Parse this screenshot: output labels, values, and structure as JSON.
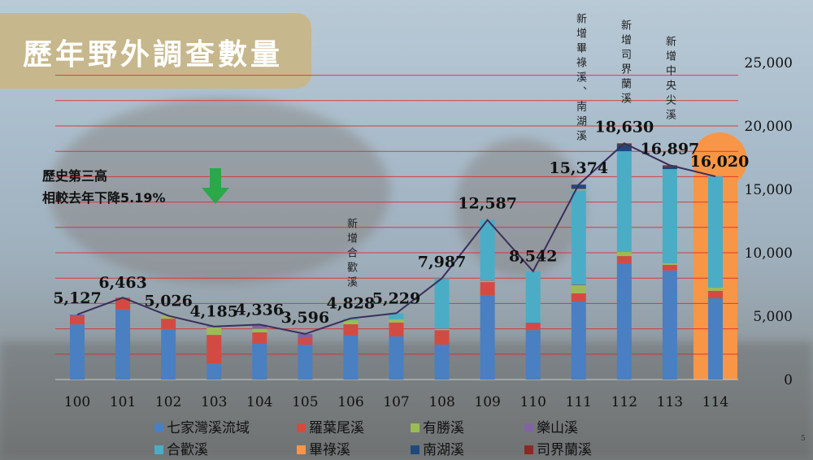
{
  "title": "歷年野外調查數量",
  "annotation_main": {
    "line1": "歷史第三高",
    "line2": "相較去年下降5.19%",
    "arrow_icon": "arrow-down-icon",
    "arrow_color": "#2aa84a"
  },
  "vertical_notes": [
    {
      "year": "106",
      "text": "新增合歡溪"
    },
    {
      "year": "111",
      "text": "新增畢祿溪、南湖溪"
    },
    {
      "year": "112",
      "text": "新增司界蘭溪"
    },
    {
      "year": "113",
      "text": "新增中央尖溪"
    }
  ],
  "page_number": "5",
  "chart_data": {
    "type": "bar",
    "stacked": true,
    "title": "歷年野外調查數量",
    "categories": [
      "100",
      "101",
      "102",
      "103",
      "104",
      "105",
      "106",
      "107",
      "108",
      "109",
      "110",
      "111",
      "112",
      "113",
      "114"
    ],
    "totals": [
      5127,
      6463,
      5026,
      4185,
      4336,
      3596,
      4828,
      5229,
      7987,
      12587,
      8542,
      15374,
      18630,
      16897,
      16020
    ],
    "total_labels": [
      "5,127",
      "6,463",
      "5,026",
      "4,185",
      "4,336",
      "3,596",
      "4,828",
      "5,229",
      "7,987",
      "12,587",
      "8,542",
      "15,374",
      "18,630",
      "16,897",
      "16,020"
    ],
    "series": [
      {
        "name": "七家灣溪流域",
        "color": "#4a7fc1",
        "values": [
          4350,
          5500,
          3970,
          1280,
          2820,
          2750,
          3460,
          3400,
          2760,
          6670,
          3900,
          6150,
          9170,
          8600,
          6410
        ]
      },
      {
        "name": "羅葉尾溪",
        "color": "#d24b43",
        "values": [
          650,
          963,
          830,
          2240,
          900,
          520,
          900,
          1090,
          1140,
          1020,
          520,
          650,
          570,
          440,
          580
        ]
      },
      {
        "name": "有勝溪",
        "color": "#9bbb59",
        "values": [
          0,
          0,
          226,
          600,
          280,
          0,
          320,
          250,
          100,
          100,
          0,
          640,
          320,
          130,
          250
        ]
      },
      {
        "name": "樂山溪",
        "color": "#8064a2",
        "values": [
          127,
          0,
          0,
          65,
          336,
          326,
          0,
          0,
          50,
          50,
          80,
          60,
          0,
          0,
          0
        ]
      },
      {
        "name": "合歡溪",
        "color": "#4bacc6",
        "values": [
          0,
          0,
          0,
          0,
          0,
          0,
          148,
          489,
          3937,
          4747,
          4042,
          7430,
          7890,
          7430,
          8780
        ]
      },
      {
        "name": "畢祿溪",
        "color": "#f79646",
        "values": [
          0,
          0,
          0,
          0,
          0,
          0,
          0,
          0,
          0,
          0,
          0,
          100,
          50,
          0,
          0
        ]
      },
      {
        "name": "南湖溪",
        "color": "#1f497d",
        "values": [
          0,
          0,
          0,
          0,
          0,
          0,
          0,
          0,
          0,
          0,
          0,
          344,
          560,
          200,
          0
        ]
      },
      {
        "name": "司界蘭溪",
        "color": "#8b2a25",
        "values": [
          0,
          0,
          0,
          0,
          0,
          0,
          0,
          0,
          0,
          0,
          0,
          0,
          70,
          97,
          0
        ]
      }
    ],
    "ylim": [
      0,
      25000
    ],
    "yticks": [
      0,
      5000,
      10000,
      15000,
      20000,
      25000
    ],
    "ytick_labels": [
      "0",
      "5,000",
      "10,000",
      "15,000",
      "20,000",
      "25,000"
    ],
    "gridline_interval": 2000,
    "grid_color": "#e0262a",
    "y_axis_side": "right",
    "line_color": "#3b2f5c",
    "highlight_category": "114",
    "highlight_color": "#f79646",
    "legend_placement": "bottom"
  }
}
